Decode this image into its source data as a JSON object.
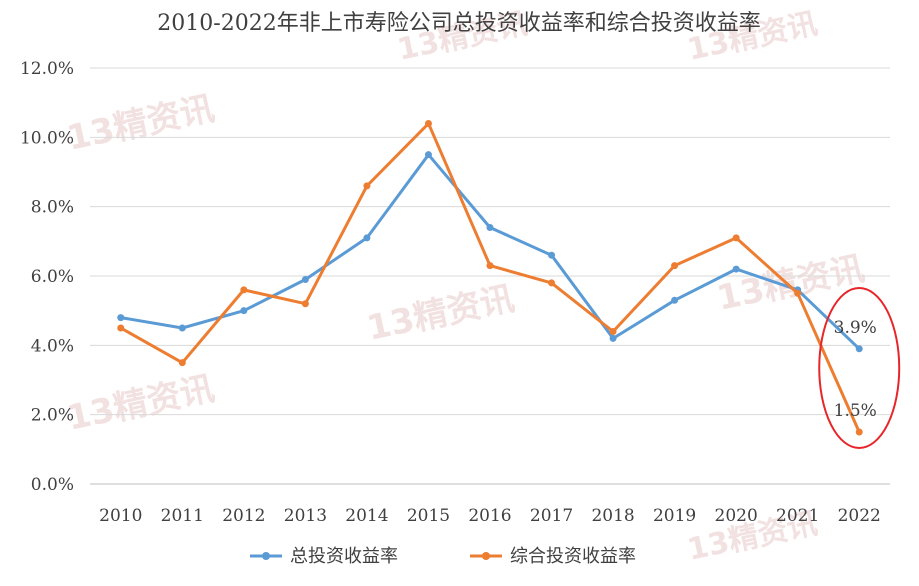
{
  "chart_data": {
    "type": "line",
    "title": "2010-2022年非上市寿险公司总投资收益率和综合投资收益率",
    "xlabel": "",
    "ylabel": "",
    "categories": [
      "2010",
      "2011",
      "2012",
      "2013",
      "2014",
      "2015",
      "2016",
      "2017",
      "2018",
      "2019",
      "2020",
      "2021",
      "2022"
    ],
    "ylim": [
      0,
      12
    ],
    "yticks": [
      "0.0%",
      "2.0%",
      "4.0%",
      "6.0%",
      "8.0%",
      "10.0%",
      "12.0%"
    ],
    "grid": true,
    "legend_position": "bottom",
    "series": [
      {
        "name": "总投资收益率",
        "color": "#5b9bd5",
        "values": [
          4.8,
          4.5,
          5.0,
          5.9,
          7.1,
          9.5,
          7.4,
          6.6,
          4.2,
          5.3,
          6.2,
          5.6,
          3.9
        ]
      },
      {
        "name": "综合投资收益率",
        "color": "#ed7d31",
        "values": [
          4.5,
          3.5,
          5.6,
          5.2,
          8.6,
          10.4,
          6.3,
          5.8,
          4.4,
          6.3,
          7.1,
          5.5,
          1.5
        ]
      }
    ],
    "annotations": [
      {
        "text": "3.9%",
        "series": 0,
        "index": 12
      },
      {
        "text": "1.5%",
        "series": 1,
        "index": 12
      }
    ],
    "highlight": {
      "shape": "ellipse",
      "color": "#e8262a",
      "around_index": 12
    }
  },
  "watermark": {
    "text": "13精资讯",
    "color": "#e9c9c9"
  }
}
